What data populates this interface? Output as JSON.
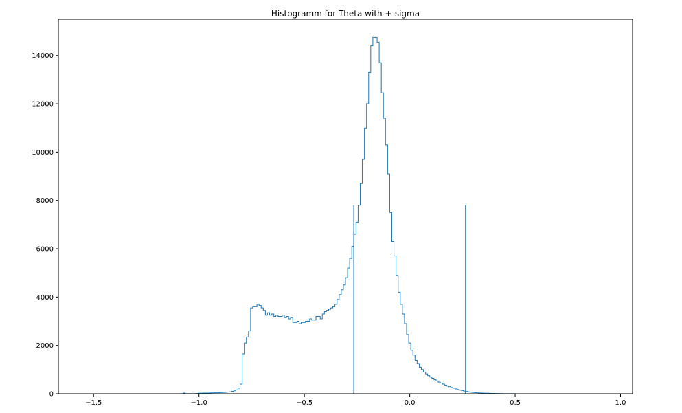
{
  "chart_data": {
    "type": "histogram",
    "title": "Histogramm for Theta with +-sigma",
    "xlabel": "",
    "ylabel": "",
    "xlim": [
      -1.667,
      1.057
    ],
    "ylim": [
      0,
      15500
    ],
    "x_ticks": [
      -1.5,
      -1.0,
      -0.5,
      0.0,
      0.5,
      1.0
    ],
    "x_tick_labels": [
      "−1.5",
      "−1.0",
      "−0.5",
      "0.0",
      "0.5",
      "1.0"
    ],
    "y_ticks": [
      0,
      2000,
      4000,
      6000,
      8000,
      10000,
      12000,
      14000
    ],
    "y_tick_labels": [
      "0",
      "2000",
      "4000",
      "6000",
      "8000",
      "10000",
      "12000",
      "14000"
    ],
    "grid": false,
    "legend": "none",
    "color": "#1f77b4",
    "series": [
      {
        "x": [
          -1.08,
          -1.07,
          -1.06,
          -1.05,
          -1.04,
          -1.03,
          -1.02,
          -1.01,
          -1.0,
          -0.99,
          -0.98,
          -0.97,
          -0.96,
          -0.95,
          -0.94,
          -0.93,
          -0.92,
          -0.91,
          -0.9,
          -0.89,
          -0.88,
          -0.87,
          -0.86,
          -0.85,
          -0.84,
          -0.83,
          -0.82,
          -0.81,
          -0.8,
          -0.79,
          -0.78,
          -0.77,
          -0.76,
          -0.75,
          -0.74,
          -0.73,
          -0.72,
          -0.71,
          -0.7,
          -0.69,
          -0.68,
          -0.67,
          -0.66,
          -0.65,
          -0.64,
          -0.63,
          -0.62,
          -0.61,
          -0.6,
          -0.59,
          -0.58,
          -0.57,
          -0.56,
          -0.55,
          -0.54,
          -0.53,
          -0.52,
          -0.51,
          -0.5,
          -0.49,
          -0.48,
          -0.47,
          -0.46,
          -0.45,
          -0.44,
          -0.43,
          -0.42,
          -0.41,
          -0.4,
          -0.39,
          -0.38,
          -0.37,
          -0.36,
          -0.35,
          -0.34,
          -0.33,
          -0.32,
          -0.31,
          -0.3,
          -0.29,
          -0.28,
          -0.27,
          -0.26,
          -0.25,
          -0.24,
          -0.23,
          -0.22,
          -0.21,
          -0.2,
          -0.19,
          -0.18,
          -0.17,
          -0.16,
          -0.15,
          -0.14,
          -0.13,
          -0.12,
          -0.11,
          -0.1,
          -0.09,
          -0.08,
          -0.07,
          -0.06,
          -0.05,
          -0.04,
          -0.03,
          -0.02,
          -0.01,
          0.0,
          0.01,
          0.02,
          0.03,
          0.04,
          0.05,
          0.06,
          0.07,
          0.08,
          0.09,
          0.1,
          0.11,
          0.12,
          0.13,
          0.14,
          0.15,
          0.16,
          0.17,
          0.18,
          0.19,
          0.2,
          0.21,
          0.22,
          0.23,
          0.24,
          0.25,
          0.26,
          0.27,
          0.28,
          0.29,
          0.3,
          0.31,
          0.32,
          0.33,
          0.34,
          0.35,
          0.36,
          0.37,
          0.38,
          0.39,
          0.4,
          0.41,
          0.42,
          0.43,
          0.44,
          0.45,
          0.46,
          0.47,
          0.48,
          0.49,
          0.5,
          0.51,
          0.52,
          0.53,
          0.54,
          0.55,
          0.56,
          0.57,
          0.58,
          0.59,
          0.6,
          0.61,
          0.62,
          0.63,
          0.64,
          0.65,
          0.66,
          0.67,
          0.68,
          0.69
        ],
        "values": [
          5,
          30,
          5,
          5,
          5,
          5,
          5,
          10,
          20,
          25,
          30,
          30,
          30,
          30,
          35,
          35,
          40,
          40,
          45,
          50,
          55,
          60,
          70,
          80,
          100,
          120,
          160,
          230,
          400,
          1650,
          2100,
          2350,
          2600,
          3550,
          3600,
          3600,
          3700,
          3650,
          3550,
          3450,
          3250,
          3350,
          3250,
          3300,
          3200,
          3250,
          3200,
          3200,
          3250,
          3150,
          3200,
          3100,
          3150,
          2950,
          2950,
          3000,
          2900,
          2950,
          2950,
          3000,
          3000,
          3100,
          3050,
          3050,
          3200,
          3200,
          3100,
          3300,
          3400,
          3450,
          3500,
          3550,
          3600,
          3700,
          3900,
          4100,
          4300,
          4500,
          4800,
          5200,
          5600,
          6100,
          6600,
          7100,
          7800,
          8700,
          9700,
          11000,
          12000,
          13300,
          14400,
          14750,
          14750,
          14550,
          13700,
          12450,
          11400,
          10300,
          9100,
          7500,
          6300,
          5700,
          4900,
          4200,
          3700,
          3300,
          2900,
          2450,
          2100,
          1800,
          1600,
          1380,
          1250,
          1100,
          1000,
          900,
          820,
          750,
          690,
          640,
          580,
          530,
          480,
          440,
          400,
          360,
          320,
          290,
          260,
          230,
          200,
          175,
          150,
          130,
          110,
          95,
          80,
          65,
          55,
          45,
          38,
          32,
          28,
          25,
          22,
          20,
          18,
          16,
          14,
          12,
          10,
          8,
          6,
          5,
          4,
          3,
          3,
          2,
          2,
          1,
          1,
          1,
          1,
          1,
          1,
          1,
          1,
          1,
          1,
          1,
          1,
          1,
          1,
          1,
          1,
          1,
          1,
          1
        ],
        "bin_width": 0.01
      }
    ],
    "vlines": [
      {
        "x": -0.265,
        "ymax": 7800
      },
      {
        "x": 0.265,
        "ymax": 7800
      }
    ]
  }
}
